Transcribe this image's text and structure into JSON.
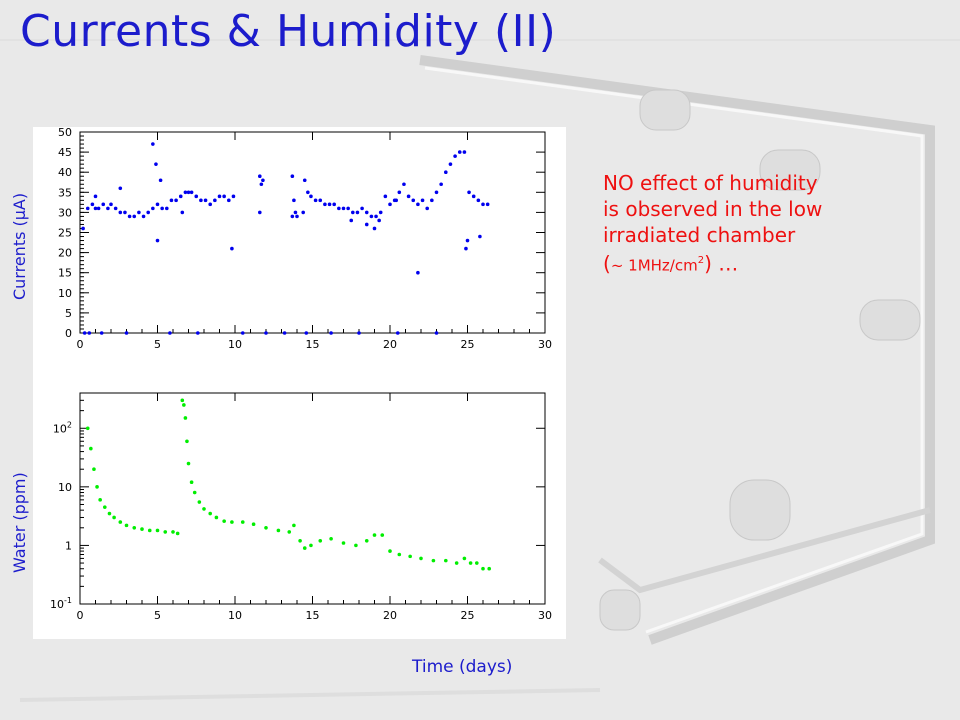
{
  "slide": {
    "title": "Currents & Humidity (II)",
    "annotation_line1": "NO effect of humidity",
    "annotation_line2": "is observed in the low",
    "annotation_line3": "irradiated chamber",
    "annotation_paren_open": "(",
    "annotation_rate": "~ 1MHz/cm",
    "annotation_exp": "2",
    "annotation_tail": ") …",
    "ylabel_top": "Currents (μA)",
    "ylabel_bottom": "Water (ppm)",
    "xlabel": "Time (days)"
  },
  "chart_data": [
    {
      "type": "scatter",
      "name": "currents",
      "color": "#0000ee",
      "xlim": [
        0,
        30
      ],
      "ylim": [
        0,
        50
      ],
      "xticks": [
        "0",
        "5",
        "10",
        "15",
        "20",
        "25",
        "30"
      ],
      "yticks": [
        "0",
        "5",
        "10",
        "15",
        "20",
        "25",
        "30",
        "35",
        "40",
        "45",
        "50"
      ],
      "x": [
        0.2,
        0.5,
        0.8,
        1.0,
        1.2,
        1.5,
        1.8,
        2.0,
        2.3,
        2.6,
        2.9,
        3.2,
        3.5,
        3.8,
        4.1,
        4.4,
        4.7,
        5.0,
        5.3,
        5.6,
        5.9,
        6.2,
        6.5,
        6.8,
        7.0,
        7.2,
        7.5,
        7.8,
        8.1,
        8.4,
        8.7,
        9.0,
        9.3,
        9.6,
        9.9,
        11.6,
        11.7,
        11.8,
        13.7,
        13.8,
        13.9,
        14.0,
        14.5,
        14.7,
        14.9,
        15.2,
        15.5,
        15.8,
        16.1,
        16.4,
        16.7,
        17.0,
        17.3,
        17.6,
        17.9,
        18.2,
        18.5,
        18.8,
        19.1,
        19.4,
        19.7,
        20.0,
        20.3,
        20.6,
        20.9,
        21.2,
        21.5,
        21.8,
        22.1,
        22.4,
        22.7,
        23.0,
        23.3,
        23.6,
        23.9,
        24.2,
        24.5,
        24.8,
        25.1,
        25.4,
        25.7,
        26.0,
        26.3,
        1.0,
        2.6,
        4.7,
        4.9,
        5.2,
        5.0,
        6.6,
        9.8,
        11.6,
        13.7,
        14.4,
        17.5,
        18.5,
        19.0,
        19.3,
        20.4,
        21.8,
        24.9,
        25.0,
        25.8,
        0.3,
        0.6,
        1.4,
        3.0,
        5.8,
        7.6,
        10.5,
        12.0,
        13.2,
        14.6,
        16.2,
        18.0,
        20.5,
        23.0
      ],
      "y": [
        26,
        31,
        32,
        31,
        31,
        32,
        31,
        32,
        31,
        30,
        30,
        29,
        29,
        30,
        29,
        30,
        31,
        32,
        31,
        31,
        33,
        33,
        34,
        35,
        35,
        35,
        34,
        33,
        33,
        32,
        33,
        34,
        34,
        33,
        34,
        39,
        37,
        38,
        39,
        33,
        30,
        29,
        38,
        35,
        34,
        33,
        33,
        32,
        32,
        32,
        31,
        31,
        31,
        30,
        30,
        31,
        30,
        29,
        29,
        30,
        34,
        32,
        33,
        35,
        37,
        34,
        33,
        32,
        33,
        31,
        33,
        35,
        37,
        40,
        42,
        44,
        45,
        45,
        35,
        34,
        33,
        32,
        32,
        34,
        36,
        47,
        42,
        38,
        23,
        30,
        21,
        30,
        29,
        30,
        28,
        27,
        26,
        28,
        33,
        15,
        21,
        23,
        24,
        0,
        0,
        0,
        0,
        0,
        0,
        0,
        0,
        0,
        0,
        0,
        0,
        0,
        0
      ]
    },
    {
      "type": "scatter",
      "name": "water",
      "color": "#00ee00",
      "xlim": [
        0,
        30
      ],
      "ylim": [
        0.1,
        400
      ],
      "yscale": "log",
      "xticks": [
        "0",
        "5",
        "10",
        "15",
        "20",
        "25",
        "30"
      ],
      "yticks": [
        "10^-1",
        "1",
        "10",
        "10^2"
      ],
      "x": [
        0.5,
        0.7,
        0.9,
        1.1,
        1.3,
        1.6,
        1.9,
        2.2,
        2.6,
        3.0,
        3.5,
        4.0,
        4.5,
        5.0,
        5.5,
        6.0,
        6.3,
        6.6,
        6.7,
        6.8,
        6.9,
        7.0,
        7.2,
        7.4,
        7.7,
        8.0,
        8.4,
        8.8,
        9.3,
        9.8,
        10.5,
        11.2,
        12.0,
        12.8,
        13.5,
        13.8,
        14.2,
        14.5,
        14.9,
        15.5,
        16.2,
        17.0,
        17.8,
        18.5,
        19.0,
        19.5,
        20.0,
        20.6,
        21.3,
        22.0,
        22.8,
        23.6,
        24.3,
        24.8,
        25.2,
        25.6,
        26.0,
        26.4
      ],
      "y": [
        100,
        45,
        20,
        10,
        6,
        4.5,
        3.5,
        3,
        2.5,
        2.2,
        2,
        1.9,
        1.8,
        1.8,
        1.7,
        1.7,
        1.6,
        300,
        250,
        150,
        60,
        25,
        12,
        8,
        5.5,
        4.2,
        3.5,
        3,
        2.6,
        2.5,
        2.5,
        2.3,
        2,
        1.8,
        1.7,
        2.2,
        1.2,
        0.9,
        1,
        1.2,
        1.3,
        1.1,
        1,
        1.2,
        1.5,
        1.5,
        0.8,
        0.7,
        0.65,
        0.6,
        0.55,
        0.55,
        0.5,
        0.6,
        0.5,
        0.5,
        0.4,
        0.4
      ]
    }
  ]
}
